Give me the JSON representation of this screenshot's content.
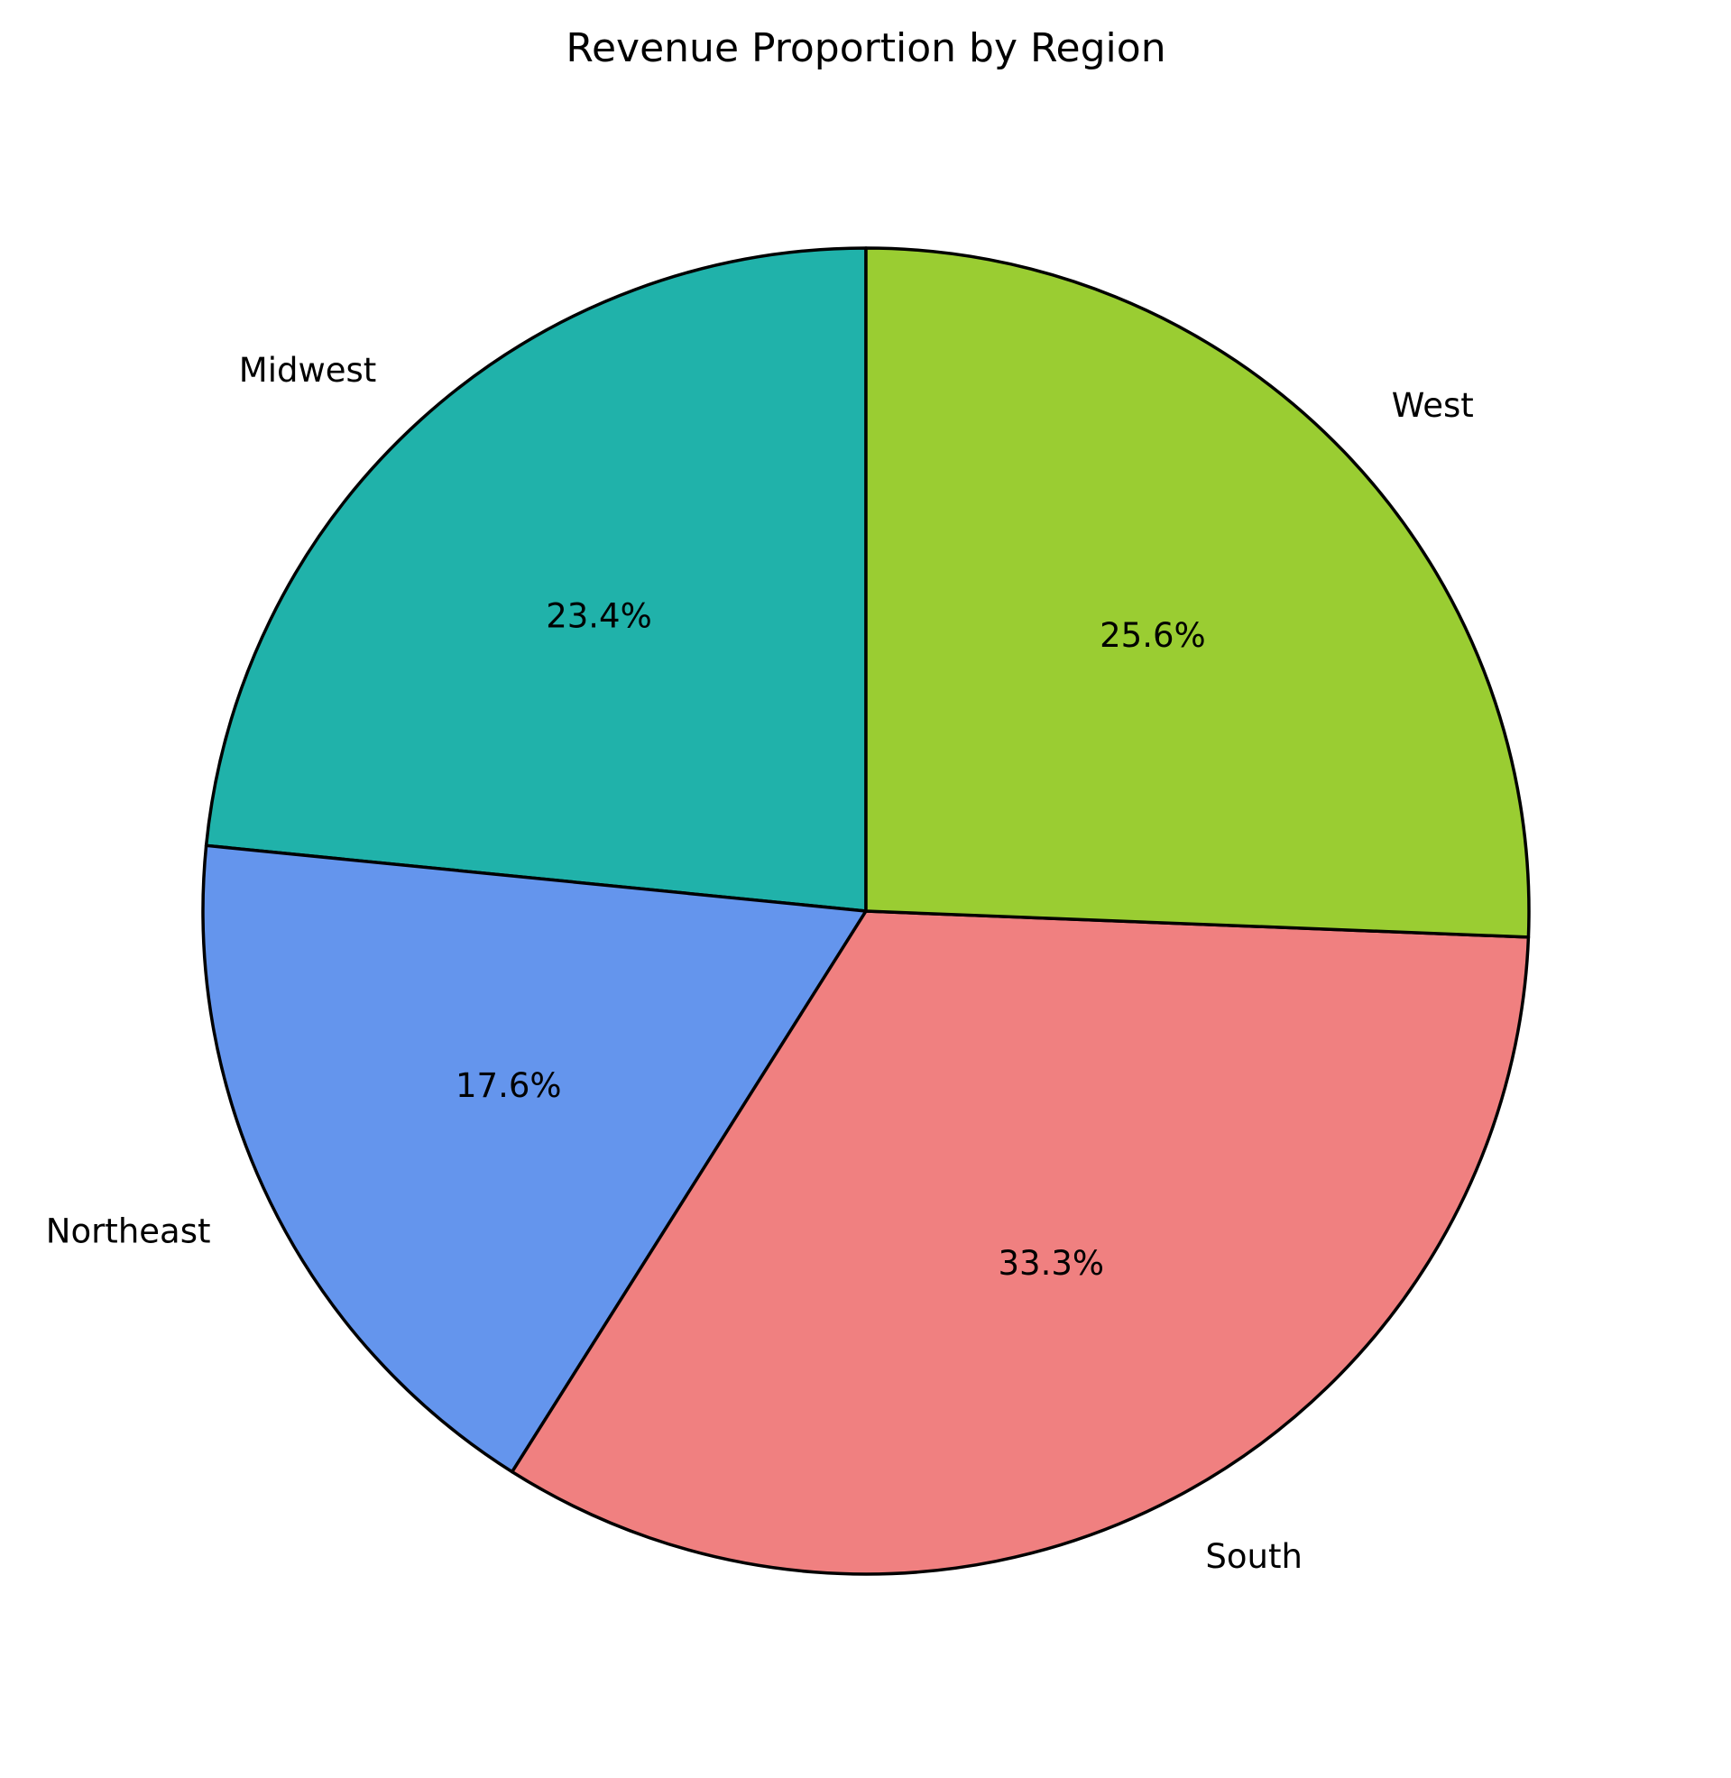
{
  "chart_data": {
    "type": "pie",
    "title": "Revenue Proportion by Region",
    "start_angle_deg": 90,
    "direction": "counterclockwise",
    "slices": [
      {
        "label": "Midwest",
        "value": 23.4,
        "pct_label": "23.4%",
        "color": "#20B2AA"
      },
      {
        "label": "Northeast",
        "value": 17.6,
        "pct_label": "17.6%",
        "color": "#6495ED"
      },
      {
        "label": "South",
        "value": 33.3,
        "pct_label": "33.3%",
        "color": "#F08080"
      },
      {
        "label": "West",
        "value": 25.6,
        "pct_label": "25.6%",
        "color": "#9ACD32"
      }
    ],
    "edge_color": "#000000",
    "legend": "none"
  }
}
